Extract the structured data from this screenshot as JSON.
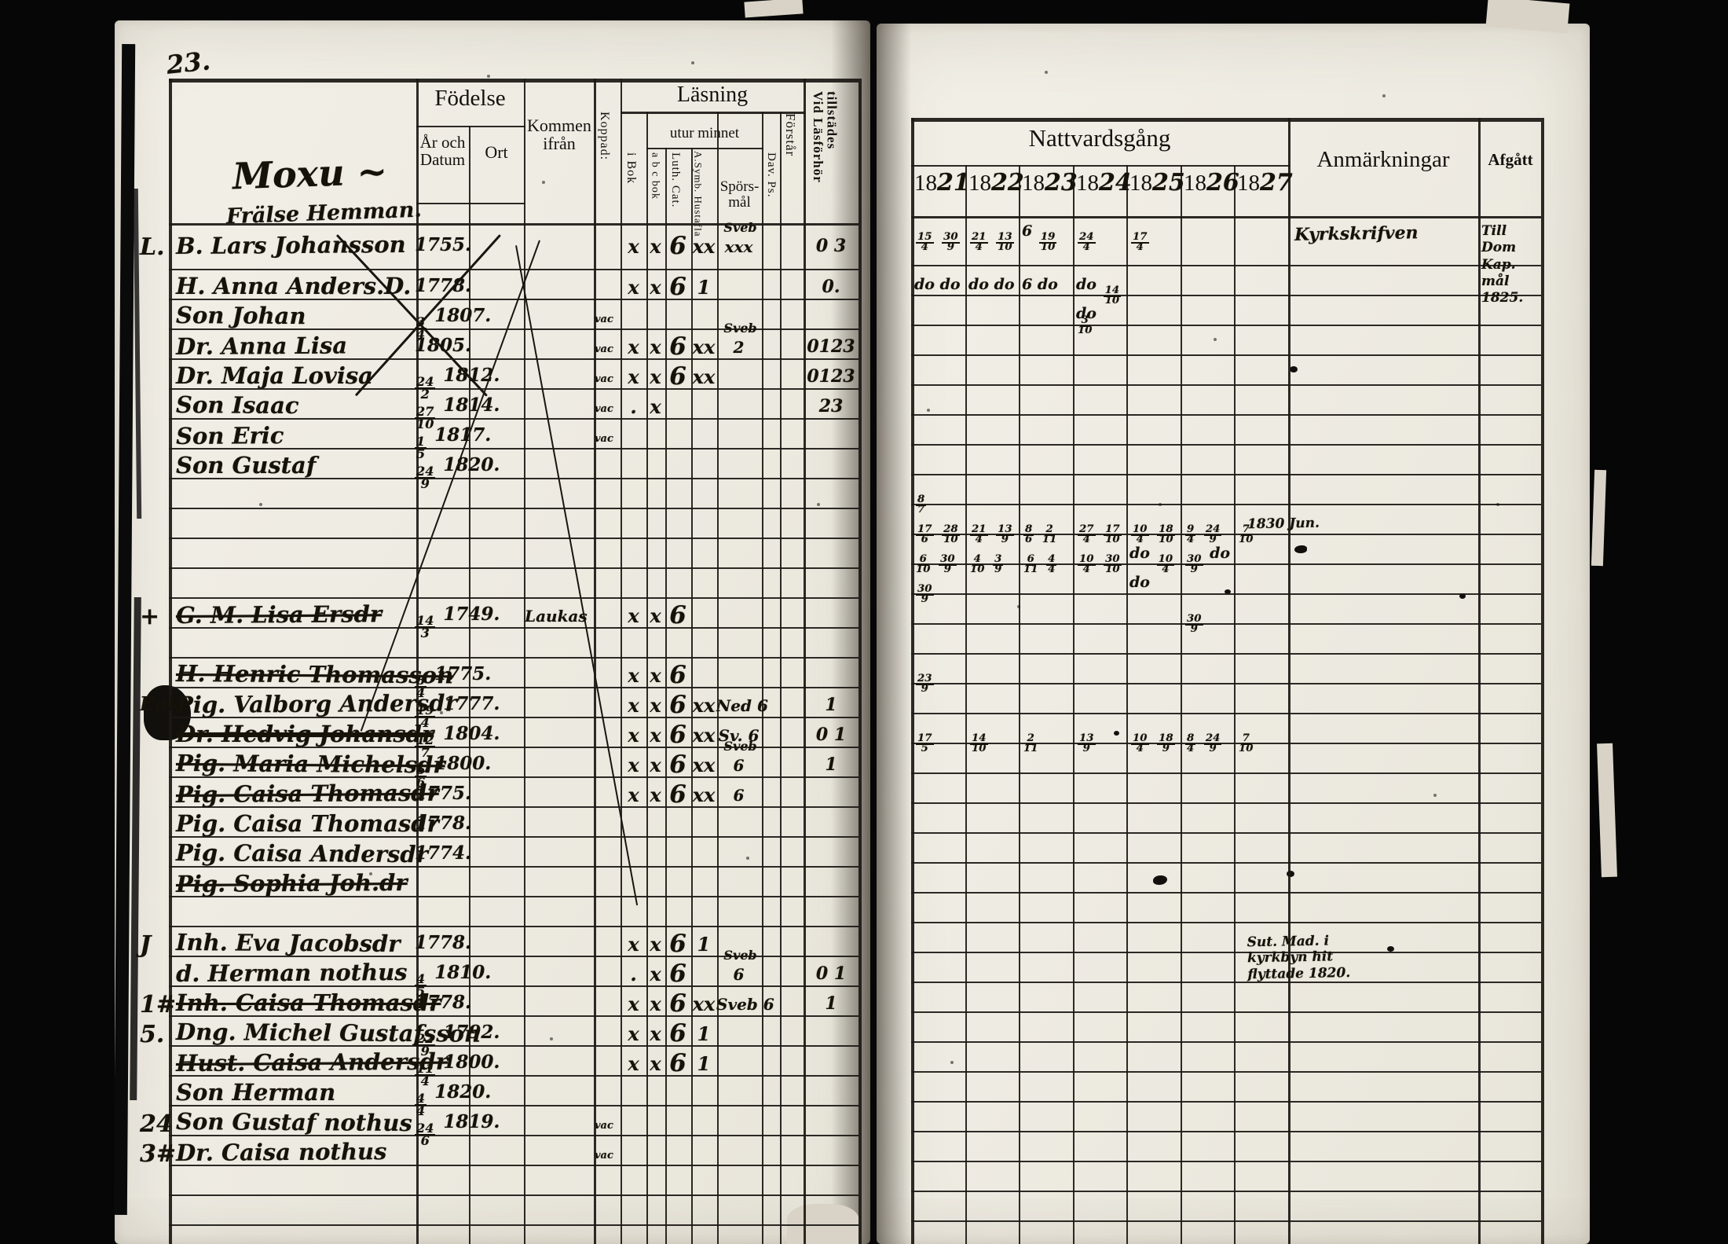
{
  "page": {
    "number": "23.",
    "heading_line1": "Moxu ~",
    "heading_line2": "Frälse Hemman."
  },
  "left_table": {
    "fodelse": "Födelse",
    "ar_och_datum": "År och Datum",
    "ort": "Ort",
    "kommen_ifran": "Kommen ifrån",
    "koppad": "Koppad:",
    "lasning": "Läsning",
    "utur_minnet": "utur minnet",
    "i_bok": "i Bok",
    "abc_bok": "a b c bok",
    "luth_cat": "Luth. Cat.",
    "a_symb": "A.Symb. Hustafla",
    "sporsmal": "Spörs- mål",
    "dav_ps": "Dav. Ps.",
    "forstar": "Förstår",
    "vid_lasforhor": "Vid Läsförhör tillstädes"
  },
  "right_table": {
    "nattvardsgang": "Nattvardsgång",
    "anmarkningar": "Anmärkningar",
    "afgatt": "Afgått",
    "years": [
      "1821",
      "1822",
      "1823",
      "1824",
      "1825",
      "1826",
      "1827"
    ]
  },
  "rows": [
    {
      "i": 0,
      "m": "L.",
      "n": "B. Lars Johansson",
      "b": "1755.",
      "bok": "x",
      "abc": "x",
      "cat": "6",
      "sym": "xx",
      "sp": "xxx",
      "no": "Sveb",
      "fh": "0 3"
    },
    {
      "i": 1,
      "m": "",
      "n": "H. Anna Anders.D.",
      "b": "1778.",
      "bok": "x",
      "abc": "x",
      "cat": "6",
      "sym": "1",
      "fh": "0."
    },
    {
      "i": 2,
      "m": "",
      "n": "Son Johan",
      "b": "3/4 1807.",
      "ko": "vac"
    },
    {
      "i": 3,
      "m": "",
      "n": "Dr. Anna Lisa",
      "b": "1805.",
      "ko": "vac",
      "bok": "x",
      "abc": "x",
      "cat": "6",
      "sym": "xx",
      "sp": "2",
      "no": "Sveb",
      "fh": "0123"
    },
    {
      "i": 4,
      "m": "",
      "n": "Dr. Maja Lovisa",
      "b": "24/2 1812.",
      "ko": "vac",
      "bok": "x",
      "abc": "x",
      "cat": "6",
      "sym": "xx",
      "fh": "0123"
    },
    {
      "i": 5,
      "m": "",
      "n": "Son Isaac",
      "b": "27/10 1814.",
      "ko": "vac",
      "bok": ".",
      "abc": "x",
      "fh": "23"
    },
    {
      "i": 6,
      "m": "",
      "n": "Son Eric",
      "b": "1/5 1817.",
      "ko": "vac"
    },
    {
      "i": 7,
      "m": "",
      "n": "Son Gustaf",
      "b": "24/9 1820."
    },
    {
      "i": 12,
      "m": "+",
      "n": "G. M. Lisa Ersdr",
      "b": "14/3 1749.",
      "km": "Laukas",
      "bok": "x",
      "abc": "x",
      "cat": "6",
      "strike": "line"
    },
    {
      "i": 14,
      "m": "",
      "n": "H. Henric Thomasson",
      "b": "8/4 1775.",
      "bok": "x",
      "abc": "x",
      "cat": "6",
      "strike": "line"
    },
    {
      "i": 15,
      "m": "Enk.",
      "n": "Pig. Valborg Andersdr",
      "b": "19/4 1777.",
      "bok": "x",
      "abc": "x",
      "cat": "6",
      "sym": "xx",
      "sp": "Ned 6",
      "fh": "1"
    },
    {
      "i": 16,
      "m": "",
      "n": "Dr. Hedvig Johansdr",
      "b": "12/7 1804.",
      "bok": "x",
      "abc": "x",
      "cat": "6",
      "sym": "xx",
      "sp": "Sv. 6",
      "fh": "0 1",
      "strike": "heavy"
    },
    {
      "i": 17,
      "m": "",
      "n": "Pig. Maria Michelsdr",
      "b": "6/6 1800.",
      "bok": "x",
      "abc": "x",
      "cat": "6",
      "sym": "xx",
      "sp": "6",
      "no": "Sveb",
      "fh": "1",
      "strike": "line"
    },
    {
      "i": 18,
      "m": "",
      "n": "Pig. Caisa Thomasdr",
      "b": "1775.",
      "bok": "x",
      "abc": "x",
      "cat": "6",
      "sym": "xx",
      "sp": "6",
      "strike": "line"
    },
    {
      "i": 19,
      "m": "",
      "n": "Pig. Caisa Thomasdr",
      "b": "1778."
    },
    {
      "i": 20,
      "m": "",
      "n": "Pig. Caisa Andersdr",
      "b": "1774."
    },
    {
      "i": 21,
      "m": "",
      "n": "Pig. Sophia Joh.dr",
      "b": "",
      "strike": "line"
    },
    {
      "i": 23,
      "m": "J",
      "n": "Inh. Eva Jacobsdr",
      "b": "1778.",
      "bok": "x",
      "abc": "x",
      "cat": "6",
      "sym": "1"
    },
    {
      "i": 24,
      "m": "",
      "n": "d. Herman nothus",
      "b": "4/5 1810.",
      "bok": ".",
      "abc": "x",
      "cat": "6",
      "sp": "6",
      "no": "Sveb",
      "fh": "0 1"
    },
    {
      "i": 25,
      "m": "1#",
      "n": "Inh. Caisa Thomasdr",
      "b": "1778.",
      "bok": "x",
      "abc": "x",
      "cat": "6",
      "sym": "xx",
      "sp": "Sveb 6",
      "fh": "1",
      "strike": "line"
    },
    {
      "i": 26,
      "m": "5.",
      "n": "Dng. Michel Gustafsson",
      "b": "22/9 1792.",
      "bok": "x",
      "abc": "x",
      "cat": "6",
      "sym": "1"
    },
    {
      "i": 27,
      "m": "",
      "n": "Hust. Caisa Andersdr",
      "b": "11/4 1800.",
      "bok": "x",
      "abc": "x",
      "cat": "6",
      "sym": "1",
      "strike": "line"
    },
    {
      "i": 28,
      "m": "",
      "n": "Son Herman",
      "b": "4/4 1820."
    },
    {
      "i": 29,
      "m": "24",
      "n": "Son Gustaf nothus",
      "b": "24/6 1819.",
      "ko": "vac"
    },
    {
      "i": 30,
      "m": "3#",
      "n": "Dr. Caisa nothus",
      "b": "",
      "ko": "vac"
    }
  ],
  "communion": [
    {
      "r": 0,
      "c": 0,
      "t": "15/4 30/9"
    },
    {
      "r": 0,
      "c": 1,
      "t": "21/4 13/10"
    },
    {
      "r": 0,
      "c": 2,
      "t": "6 19/10"
    },
    {
      "r": 0,
      "c": 3,
      "t": "24/4"
    },
    {
      "r": 0,
      "c": 4,
      "t": "17/4"
    },
    {
      "r": 1,
      "c": 0,
      "t": "do do"
    },
    {
      "r": 1,
      "c": 1,
      "t": "do do"
    },
    {
      "r": 1,
      "c": 2,
      "t": "6 do"
    },
    {
      "r": 1,
      "c": 3,
      "t": "do 14/10 do"
    },
    {
      "r": 2,
      "c": 3,
      "t": "3/10"
    },
    {
      "r": 8,
      "c": 0,
      "t": "8/7"
    },
    {
      "r": 9,
      "c": 0,
      "t": "17/6 28/10"
    },
    {
      "r": 9,
      "c": 1,
      "t": "21/4 13/9"
    },
    {
      "r": 9,
      "c": 2,
      "t": "8/6 2/11"
    },
    {
      "r": 9,
      "c": 3,
      "t": "27/4 17/10"
    },
    {
      "r": 9,
      "c": 4,
      "t": "10/4 18/10"
    },
    {
      "r": 9,
      "c": 5,
      "t": "9/4 24/9"
    },
    {
      "r": 9,
      "c": 6,
      "t": "7/10"
    },
    {
      "r": 10,
      "c": 0,
      "t": "6/10 30/9"
    },
    {
      "r": 10,
      "c": 1,
      "t": "4/10 3/9"
    },
    {
      "r": 10,
      "c": 2,
      "t": "6/11 4/4"
    },
    {
      "r": 10,
      "c": 3,
      "t": "10/4 30/10"
    },
    {
      "r": 10,
      "c": 4,
      "t": "do 10/4 do"
    },
    {
      "r": 10,
      "c": 5,
      "t": "30/9 do"
    },
    {
      "r": 11,
      "c": 0,
      "t": "30/9"
    },
    {
      "r": 12,
      "c": 5,
      "t": "30/9"
    },
    {
      "r": 14,
      "c": 0,
      "t": "23/9"
    },
    {
      "r": 16,
      "c": 0,
      "t": "17/5"
    },
    {
      "r": 16,
      "c": 1,
      "t": "14/10"
    },
    {
      "r": 16,
      "c": 2,
      "t": "2/11"
    },
    {
      "r": 16,
      "c": 3,
      "t": "13/9"
    },
    {
      "r": 16,
      "c": 4,
      "t": "10/4 18/9"
    },
    {
      "r": 16,
      "c": 5,
      "t": "8/4 24/9"
    },
    {
      "r": 16,
      "c": 6,
      "t": "7/10"
    }
  ],
  "remarks": [
    {
      "r": 0,
      "pos": "anm",
      "t": "Kyrkskrifven"
    },
    {
      "r": 9,
      "pos": "edge",
      "t": "1830 Jun."
    },
    {
      "r": 23,
      "pos": "edge",
      "t": "Sut. Mad. i kyrkbyn hit flyttade 1820."
    }
  ],
  "departures": [
    {
      "r": 0,
      "lines": [
        "Till Dom",
        "Kap. mål",
        "1825."
      ]
    }
  ]
}
